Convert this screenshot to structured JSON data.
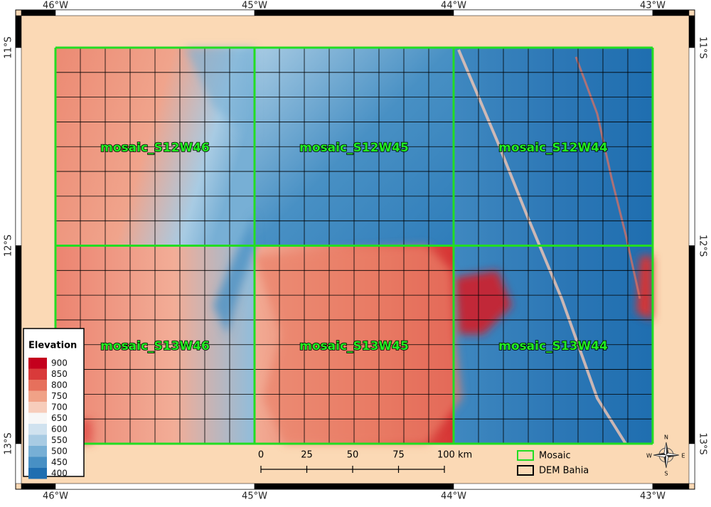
{
  "frame": {
    "longitudes": [
      "46°W",
      "45°W",
      "44°W",
      "43°W"
    ],
    "latitudes": [
      "11°S",
      "12°S",
      "13°S"
    ]
  },
  "tiles": [
    {
      "label": "mosaic_S12W46"
    },
    {
      "label": "mosaic_S12W45"
    },
    {
      "label": "mosaic_S12W44"
    },
    {
      "label": "mosaic_S13W46"
    },
    {
      "label": "mosaic_S13W45"
    },
    {
      "label": "mosaic_S13W44"
    }
  ],
  "elevation_legend": {
    "title": "Elevation",
    "entries": [
      {
        "value": 900,
        "color": "#c4001d"
      },
      {
        "value": 850,
        "color": "#d93a3a"
      },
      {
        "value": 800,
        "color": "#e6705c"
      },
      {
        "value": 750,
        "color": "#f0a287"
      },
      {
        "value": 700,
        "color": "#f7cdbb"
      },
      {
        "value": 650,
        "color": "#f7f7f7"
      },
      {
        "value": 600,
        "color": "#d0e2ef"
      },
      {
        "value": 550,
        "color": "#a8cbe3"
      },
      {
        "value": 500,
        "color": "#77afd5"
      },
      {
        "value": 450,
        "color": "#4890c4"
      },
      {
        "value": 400,
        "color": "#1f6eb0"
      }
    ]
  },
  "scale_bar": {
    "labels": [
      "0",
      "25",
      "50",
      "75",
      "100 km"
    ]
  },
  "layer_legend": {
    "items": [
      {
        "label": "Mosaic",
        "color": "#22dd22"
      },
      {
        "label": "DEM Bahia",
        "color": "#000000"
      }
    ]
  },
  "compass": {
    "north": "N",
    "south": "S",
    "east": "E",
    "west": "W"
  }
}
